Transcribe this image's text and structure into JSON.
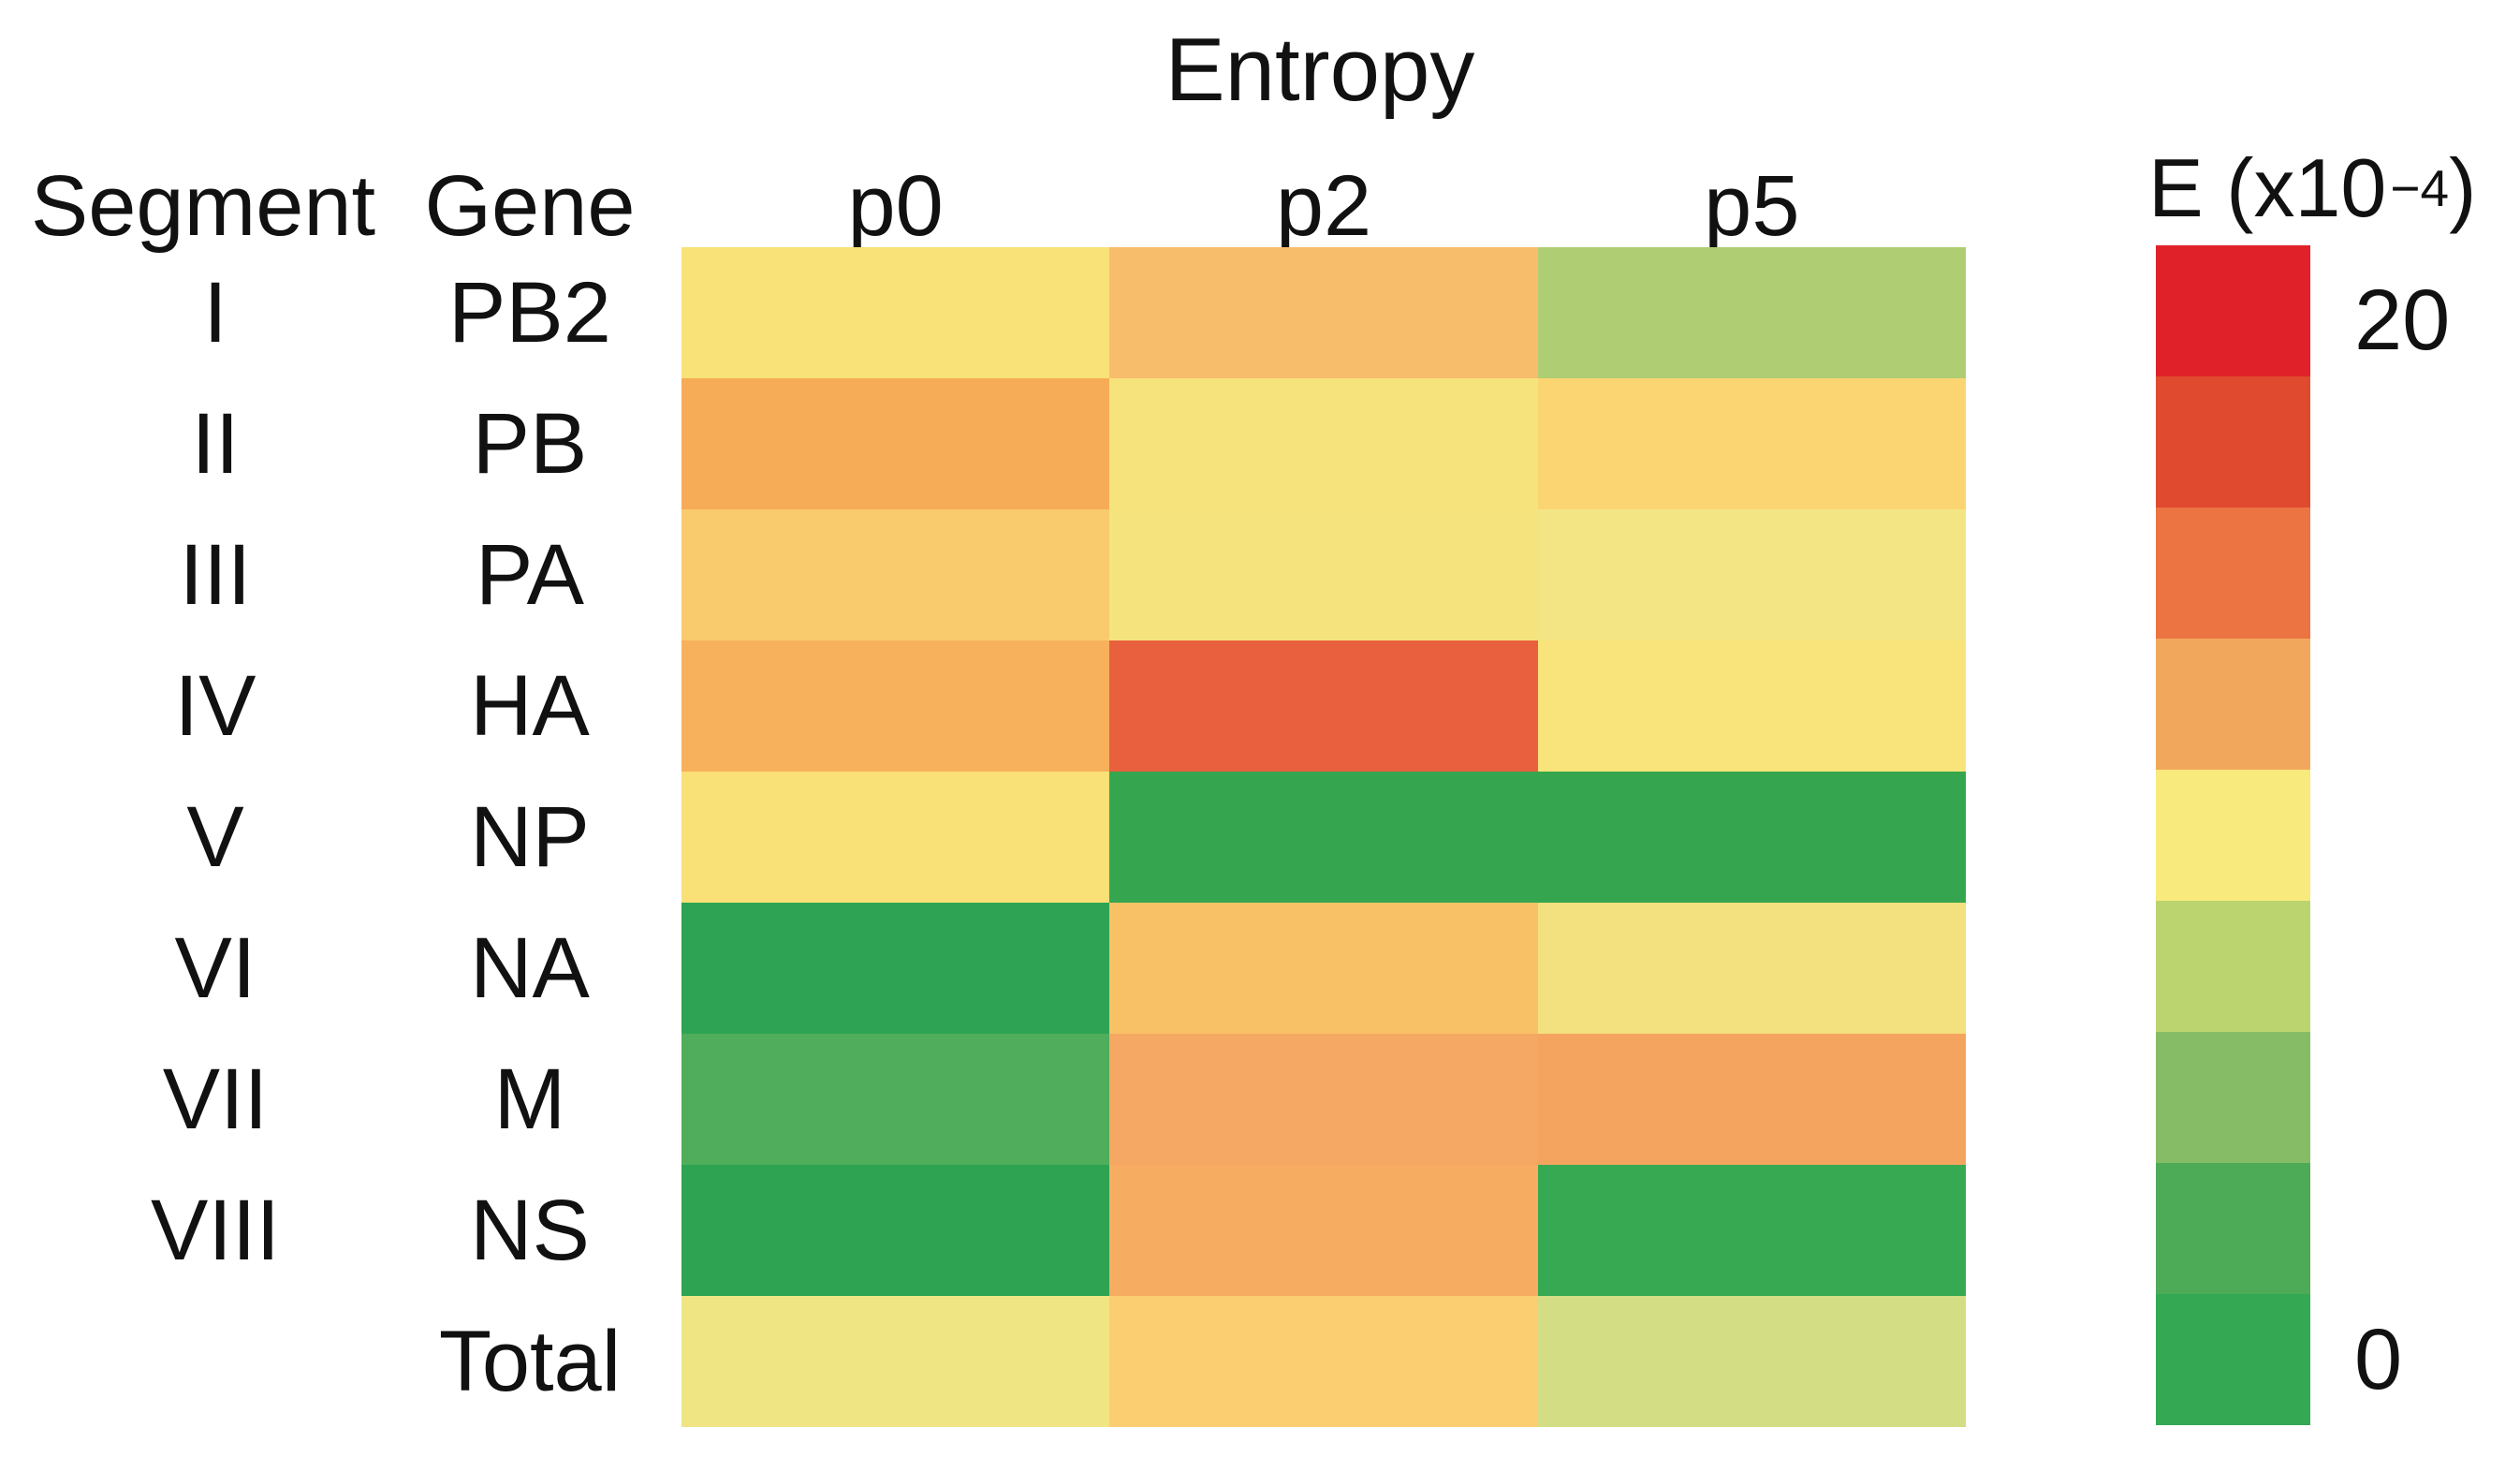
{
  "title": "Entropy",
  "row_header_labels": {
    "segment": "Segment",
    "gene": "Gene"
  },
  "legend": {
    "title_prefix": "E (x10",
    "title_exponent": "−4",
    "title_suffix": ")",
    "max_label": "20",
    "min_label": "0",
    "band_colors_top_to_bottom": [
      "#E1212A",
      "#E04A2F",
      "#EC7442",
      "#F2A85C",
      "#F8EA7C",
      "#BCD46F",
      "#85BC65",
      "#4DAB58",
      "#34A853"
    ]
  },
  "chart_data": {
    "type": "heatmap",
    "title": "Entropy",
    "value_label": "E (x10^-4)",
    "columns": [
      "p0",
      "p2",
      "p5"
    ],
    "row_header_columns": [
      "Segment",
      "Gene"
    ],
    "scale": {
      "min": 0,
      "max": 20,
      "min_label": "0",
      "max_label": "20"
    },
    "colorbar_colors_top_to_bottom": [
      "#E1212A",
      "#E04A2F",
      "#EC7442",
      "#F2A85C",
      "#F8EA7C",
      "#BCD46F",
      "#85BC65",
      "#4DAB58",
      "#34A853"
    ],
    "rows": [
      {
        "segment": "I",
        "gene": "PB2",
        "cell_colors": [
          "#F9E277",
          "#F8BD6B",
          "#AFCE73"
        ],
        "values_est": [
          10.5,
          12.0,
          7.0
        ]
      },
      {
        "segment": "II",
        "gene": "PB",
        "cell_colors": [
          "#F6AC57",
          "#F7E37B",
          "#FBD572"
        ],
        "values_est": [
          12.5,
          10.0,
          11.0
        ]
      },
      {
        "segment": "III",
        "gene": "PA",
        "cell_colors": [
          "#F9CB6C",
          "#F5E47D",
          "#F3E583"
        ],
        "values_est": [
          11.5,
          10.0,
          9.5
        ]
      },
      {
        "segment": "IV",
        "gene": "HA",
        "cell_colors": [
          "#F7B15C",
          "#E8603D",
          "#F8E47A"
        ],
        "values_est": [
          12.5,
          16.0,
          10.5
        ]
      },
      {
        "segment": "V",
        "gene": "NP",
        "cell_colors": [
          "#F9E077",
          "#35A64F",
          "#35A64F"
        ],
        "values_est": [
          10.5,
          0.5,
          0.5
        ]
      },
      {
        "segment": "VI",
        "gene": "NA",
        "cell_colors": [
          "#2EA353",
          "#F9C166",
          "#F3E07F"
        ],
        "values_est": [
          0.5,
          11.5,
          10.0
        ]
      },
      {
        "segment": "VII",
        "gene": "M",
        "cell_colors": [
          "#4FAD5B",
          "#F5A863",
          "#F5A45F"
        ],
        "values_est": [
          2.5,
          12.5,
          12.5
        ]
      },
      {
        "segment": "VIII",
        "gene": "NS",
        "cell_colors": [
          "#2EA452",
          "#F6AD62",
          "#37A953"
        ],
        "values_est": [
          0.5,
          12.5,
          0.5
        ]
      },
      {
        "segment": "",
        "gene": "Total",
        "cell_colors": [
          "#EFE583",
          "#FACE71",
          "#D2DD84"
        ],
        "values_est": [
          9.5,
          11.5,
          8.5
        ]
      }
    ],
    "values_note": "No numeric cell labels are printed in the figure; values_est are E (x10^-4) estimates inferred from cell colors against the 0-20 color scale."
  }
}
